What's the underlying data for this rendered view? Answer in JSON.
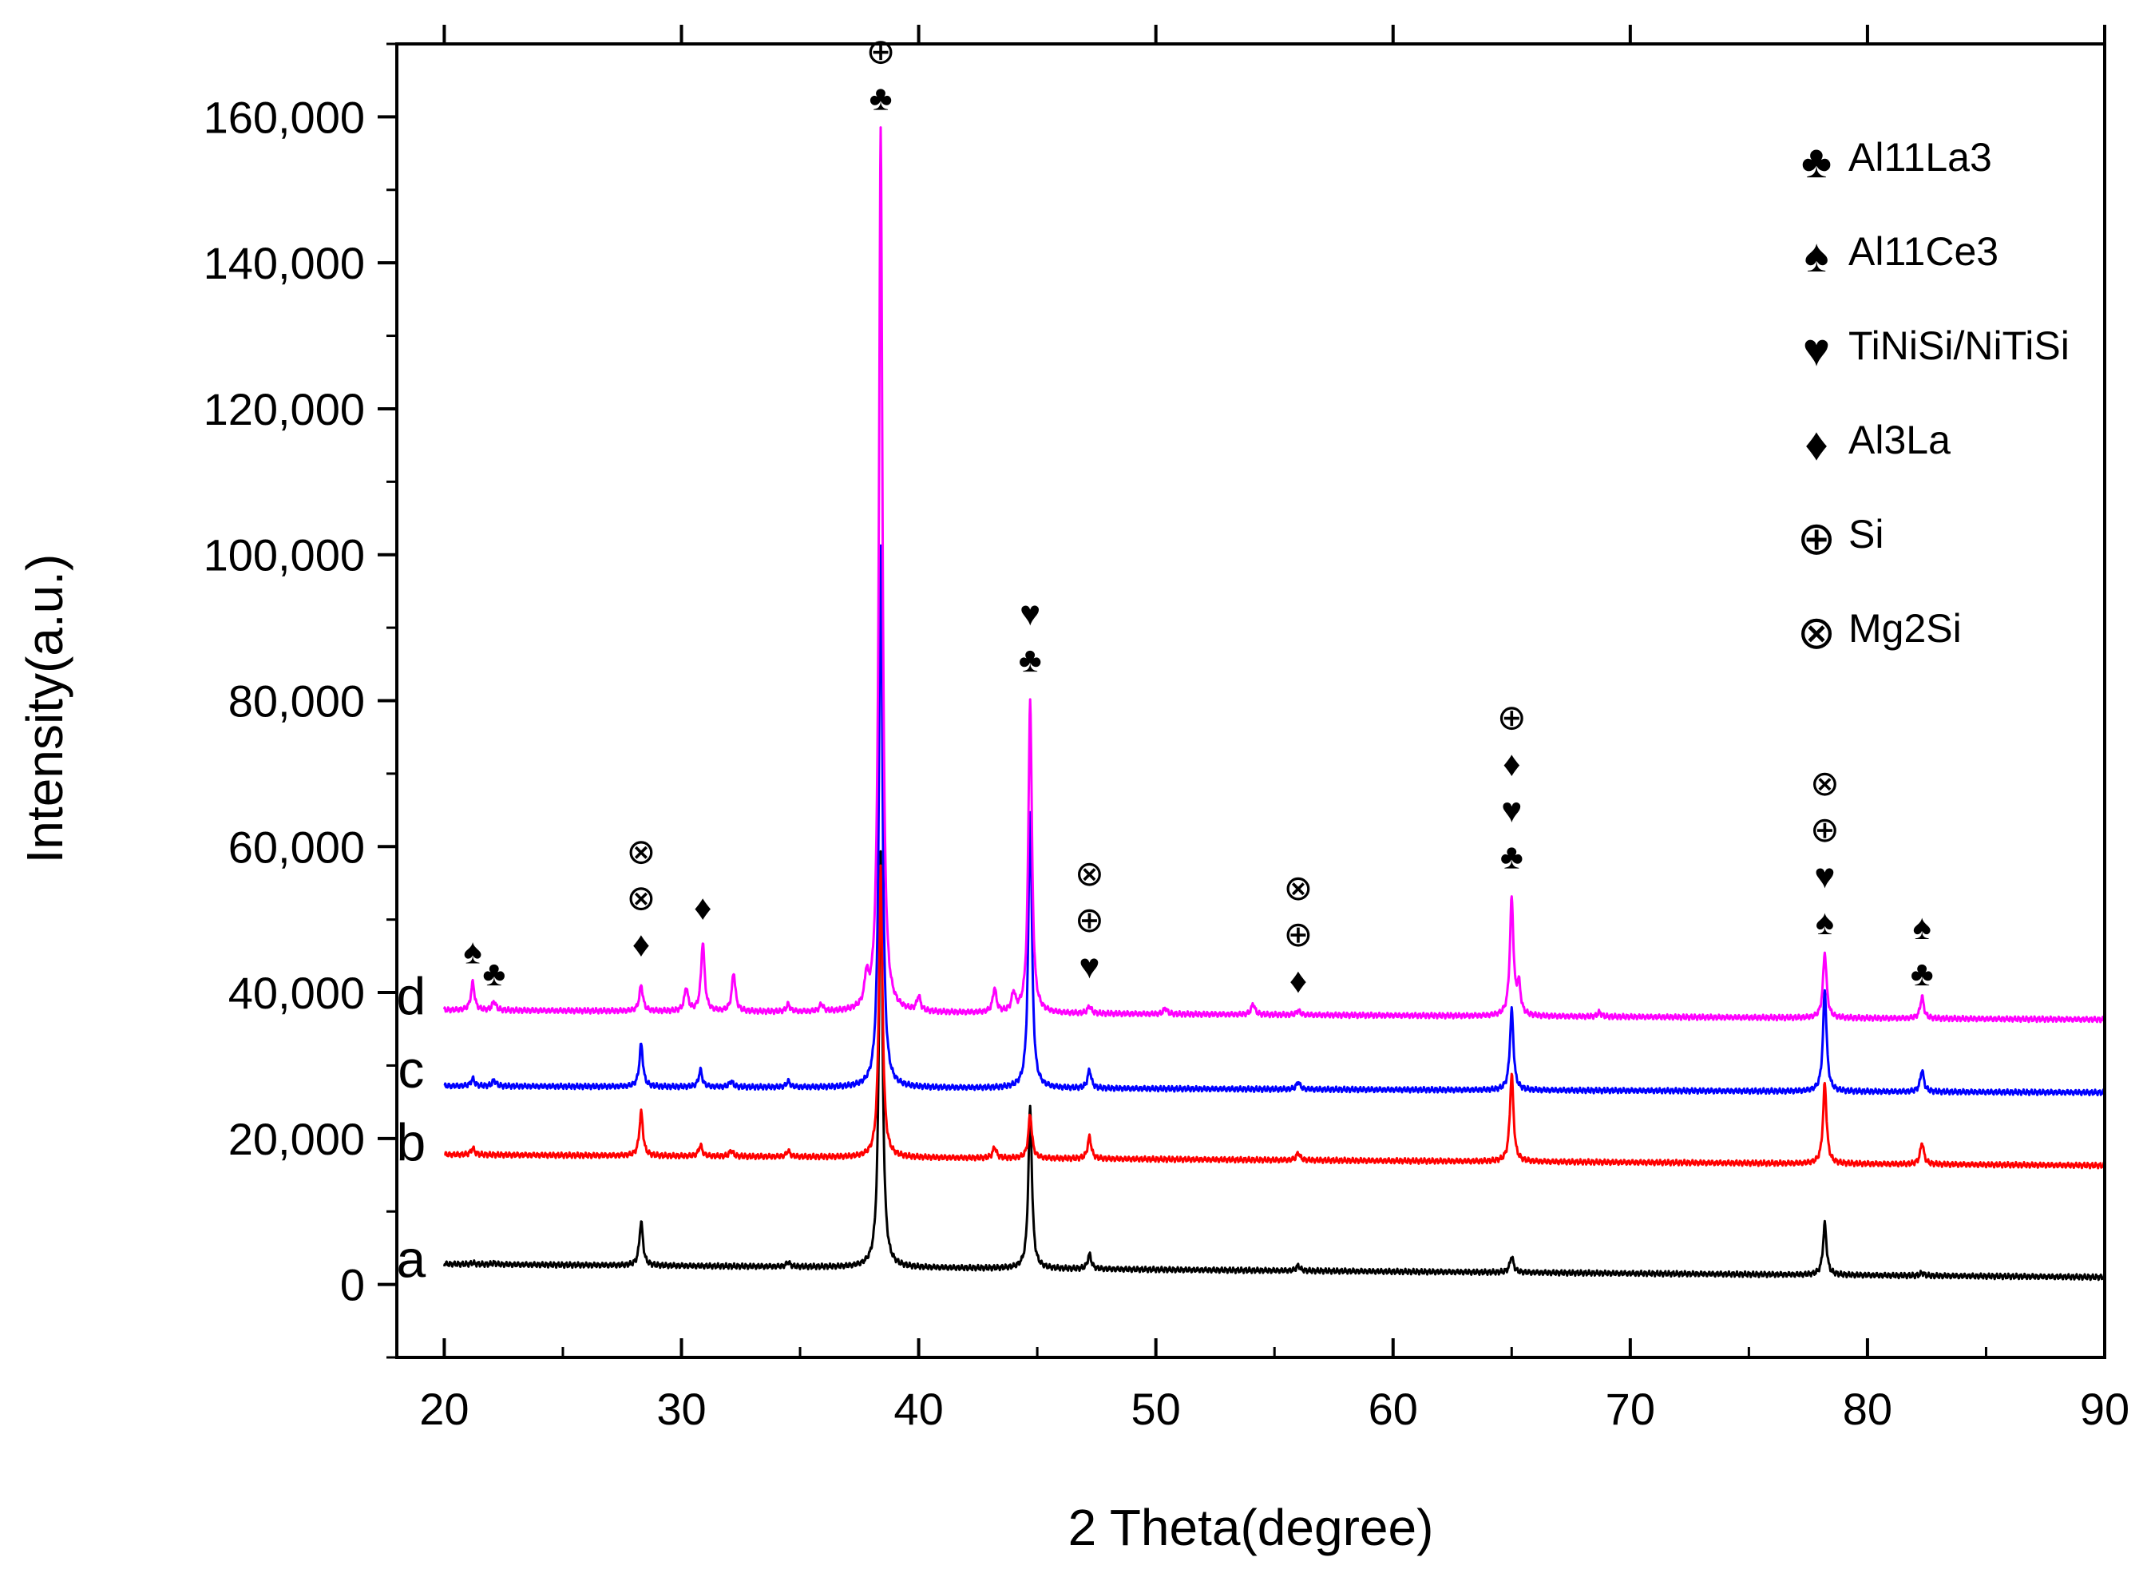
{
  "chart_data": {
    "type": "line",
    "title": "",
    "xlabel": "2 Theta(degree)",
    "ylabel": "Intensity(a.u.)",
    "xlim": [
      18,
      90
    ],
    "ylim": [
      -10000,
      170000
    ],
    "x_ticks": [
      20,
      30,
      40,
      50,
      60,
      70,
      80,
      90
    ],
    "x_tick_labels": [
      "20",
      "30",
      "40",
      "50",
      "60",
      "70",
      "80",
      "90"
    ],
    "y_ticks": [
      0,
      20000,
      40000,
      60000,
      80000,
      100000,
      120000,
      140000,
      160000
    ],
    "y_tick_labels": [
      "0",
      "20,000",
      "40,000",
      "60,000",
      "80,000",
      "100,000",
      "120,000",
      "140,000",
      "160,000"
    ],
    "series": [
      {
        "name": "a",
        "color": "#000000",
        "baseline": [
          [
            20,
            2800
          ],
          [
            90,
            1000
          ]
        ],
        "peaks": [
          [
            21.2,
            200
          ],
          [
            22.1,
            200
          ],
          [
            28.3,
            6000
          ],
          [
            34.5,
            600
          ],
          [
            38.4,
            57000
          ],
          [
            44.7,
            22000
          ],
          [
            47.2,
            2000
          ],
          [
            56.0,
            700
          ],
          [
            65.0,
            2200
          ],
          [
            78.2,
            7000
          ],
          [
            82.3,
            400
          ]
        ]
      },
      {
        "name": "b",
        "color": "#ff0000",
        "baseline": [
          [
            20,
            17800
          ],
          [
            90,
            16300
          ]
        ],
        "peaks": [
          [
            21.2,
            900
          ],
          [
            28.3,
            6000
          ],
          [
            30.8,
            1500
          ],
          [
            32.1,
            800
          ],
          [
            34.5,
            800
          ],
          [
            38.4,
            40000
          ],
          [
            43.2,
            1500
          ],
          [
            44.7,
            6000
          ],
          [
            47.2,
            3000
          ],
          [
            56.0,
            1000
          ],
          [
            65.0,
            12000
          ],
          [
            78.2,
            11000
          ],
          [
            82.3,
            3000
          ]
        ]
      },
      {
        "name": "c",
        "color": "#0000ff",
        "baseline": [
          [
            20,
            27200
          ],
          [
            90,
            26300
          ]
        ],
        "peaks": [
          [
            21.2,
            1000
          ],
          [
            22.1,
            800
          ],
          [
            28.3,
            5800
          ],
          [
            30.8,
            2300
          ],
          [
            32.1,
            800
          ],
          [
            34.5,
            800
          ],
          [
            38.4,
            74000
          ],
          [
            44.7,
            38000
          ],
          [
            47.2,
            2500
          ],
          [
            56.0,
            1000
          ],
          [
            65.0,
            11000
          ],
          [
            78.2,
            14000
          ],
          [
            82.3,
            3000
          ]
        ]
      },
      {
        "name": "d",
        "color": "#ff00ff",
        "baseline": [
          [
            20,
            37600
          ],
          [
            90,
            36300
          ]
        ],
        "peaks": [
          [
            21.2,
            3800
          ],
          [
            22.1,
            1200
          ],
          [
            28.3,
            3500
          ],
          [
            30.2,
            3200
          ],
          [
            30.9,
            9400
          ],
          [
            32.2,
            5300
          ],
          [
            34.5,
            1000
          ],
          [
            35.9,
            1000
          ],
          [
            37.8,
            3800
          ],
          [
            38.4,
            121000
          ],
          [
            40.0,
            2000
          ],
          [
            43.2,
            3300
          ],
          [
            44.0,
            2500
          ],
          [
            44.7,
            43000
          ],
          [
            47.2,
            1000
          ],
          [
            50.4,
            800
          ],
          [
            54.1,
            1500
          ],
          [
            56.0,
            600
          ],
          [
            65.0,
            16000
          ],
          [
            65.3,
            4000
          ],
          [
            68.7,
            600
          ],
          [
            78.2,
            9000
          ],
          [
            82.3,
            3000
          ]
        ]
      }
    ],
    "curve_labels": [
      {
        "text": "a",
        "x": 18.6,
        "y": 1000
      },
      {
        "text": "b",
        "x": 18.6,
        "y": 17000
      },
      {
        "text": "c",
        "x": 18.6,
        "y": 27000
      },
      {
        "text": "d",
        "x": 18.6,
        "y": 37000
      }
    ],
    "legend": {
      "position": "top-right",
      "entries": [
        {
          "icon": "club-icon",
          "glyph": "♣",
          "label": "Al11La3"
        },
        {
          "icon": "spade-icon",
          "glyph": "♠",
          "label": "Al11Ce3"
        },
        {
          "icon": "heart-icon",
          "glyph": "♥",
          "label": "TiNiSi/NiTiSi"
        },
        {
          "icon": "diamond-icon",
          "glyph": "♦",
          "label": "Al3La"
        },
        {
          "icon": "circle-plus-icon",
          "glyph": "⊕",
          "label": "Si"
        },
        {
          "icon": "circle-times-icon",
          "glyph": "⊗",
          "label": "Mg2Si"
        }
      ]
    },
    "annotations": [
      {
        "x": 21.2,
        "y": 44000,
        "symbols": [
          "♠"
        ]
      },
      {
        "x": 22.1,
        "y": 41000,
        "symbols": [
          "♣"
        ]
      },
      {
        "x": 28.3,
        "y": 45000,
        "symbols": [
          "♦",
          "⊗",
          "⊗"
        ]
      },
      {
        "x": 30.9,
        "y": 50000,
        "symbols": [
          "♦"
        ]
      },
      {
        "x": 38.4,
        "y": 161000,
        "symbols": [
          "♣",
          "⊕"
        ]
      },
      {
        "x": 44.7,
        "y": 84000,
        "symbols": [
          "♣",
          "♥"
        ]
      },
      {
        "x": 47.2,
        "y": 42000,
        "symbols": [
          "♥",
          "⊕",
          "⊗"
        ]
      },
      {
        "x": 56.0,
        "y": 40000,
        "symbols": [
          "♦",
          "⊕",
          "⊗"
        ]
      },
      {
        "x": 65.0,
        "y": 57000,
        "symbols": [
          "♣",
          "♥",
          "♦",
          "⊕"
        ]
      },
      {
        "x": 78.2,
        "y": 48000,
        "symbols": [
          "♠",
          "♥",
          "⊕",
          "⊗"
        ]
      },
      {
        "x": 82.3,
        "y": 41000,
        "symbols": [
          "♣",
          "♠"
        ]
      }
    ]
  }
}
